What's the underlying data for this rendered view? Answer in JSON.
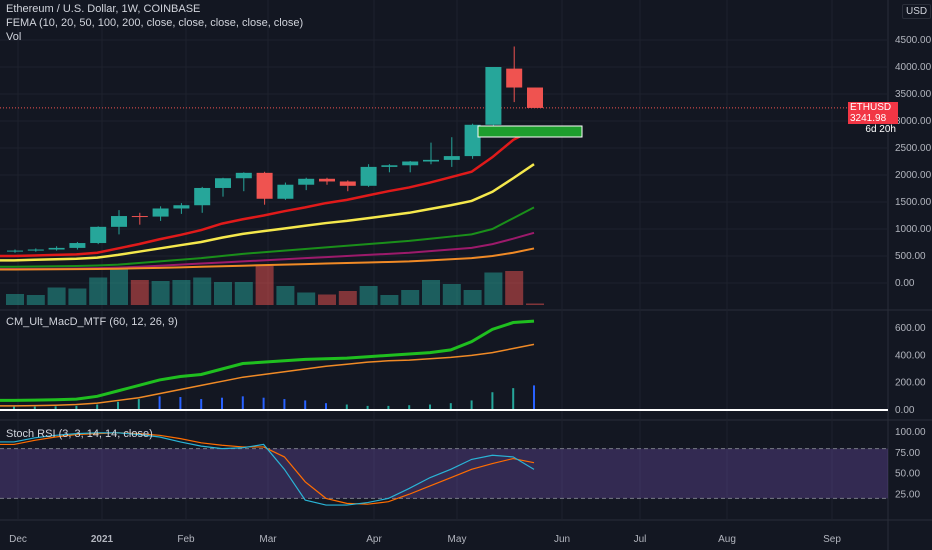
{
  "header": {
    "title": "Ethereum / U.S. Dollar, 1W, COINBASE",
    "fema": "FEMA (10, 20, 50, 100, 200, close, close, close, close, close)",
    "vol": "Vol"
  },
  "currency": "USD",
  "price_tag": {
    "symbol": "ETHUSD",
    "price": "3241.98",
    "countdown": "6d 20h"
  },
  "macd_label": "CM_Ult_MacD_MTF (60, 12, 26, 9)",
  "stoch_label": "Stoch RSI (3, 3, 14, 14, close)",
  "colors": {
    "up": "#26a69a",
    "down": "#ef5350",
    "bg": "#131722"
  },
  "chart_data": [
    {
      "type": "candlestick",
      "y_ticks": [
        "4500.00",
        "4000.00",
        "3500.00",
        "3000.00",
        "2500.00",
        "2000.00",
        "1500.00",
        "1000.00",
        "500.00",
        "0.00"
      ],
      "x_ticks": [
        "Dec",
        "2021",
        "Feb",
        "Mar",
        "Apr",
        "May",
        "Jun",
        "Jul",
        "Aug",
        "Sep"
      ],
      "candles": [
        {
          "o": 590,
          "h": 620,
          "l": 560,
          "c": 600
        },
        {
          "o": 600,
          "h": 640,
          "l": 580,
          "c": 620
        },
        {
          "o": 620,
          "h": 680,
          "l": 600,
          "c": 650
        },
        {
          "o": 650,
          "h": 760,
          "l": 620,
          "c": 740
        },
        {
          "o": 740,
          "h": 1050,
          "l": 720,
          "c": 1040
        },
        {
          "o": 1040,
          "h": 1350,
          "l": 900,
          "c": 1240
        },
        {
          "o": 1240,
          "h": 1300,
          "l": 1080,
          "c": 1230
        },
        {
          "o": 1230,
          "h": 1420,
          "l": 1150,
          "c": 1380
        },
        {
          "o": 1380,
          "h": 1480,
          "l": 1280,
          "c": 1440
        },
        {
          "o": 1440,
          "h": 1780,
          "l": 1300,
          "c": 1760
        },
        {
          "o": 1760,
          "h": 1950,
          "l": 1600,
          "c": 1940
        },
        {
          "o": 1940,
          "h": 2050,
          "l": 1700,
          "c": 2040
        },
        {
          "o": 2040,
          "h": 2060,
          "l": 1450,
          "c": 1560
        },
        {
          "o": 1560,
          "h": 1860,
          "l": 1540,
          "c": 1820
        },
        {
          "o": 1820,
          "h": 1950,
          "l": 1720,
          "c": 1930
        },
        {
          "o": 1930,
          "h": 1950,
          "l": 1820,
          "c": 1880
        },
        {
          "o": 1880,
          "h": 1900,
          "l": 1700,
          "c": 1800
        },
        {
          "o": 1800,
          "h": 2200,
          "l": 1780,
          "c": 2150
        },
        {
          "o": 2150,
          "h": 2200,
          "l": 2050,
          "c": 2180
        },
        {
          "o": 2180,
          "h": 2260,
          "l": 2050,
          "c": 2250
        },
        {
          "o": 2250,
          "h": 2600,
          "l": 2200,
          "c": 2280
        },
        {
          "o": 2280,
          "h": 2700,
          "l": 2150,
          "c": 2350
        },
        {
          "o": 2350,
          "h": 2950,
          "l": 2300,
          "c": 2930
        },
        {
          "o": 2930,
          "h": 4000,
          "l": 2900,
          "c": 4000
        },
        {
          "o": 3970,
          "h": 4380,
          "l": 3350,
          "c": 3620
        },
        {
          "o": 3620,
          "h": 3620,
          "l": 3240,
          "c": 3242
        }
      ],
      "ema_lines": [
        {
          "name": "EMA10",
          "color": "#e01a1a",
          "values": [
            500,
            510,
            520,
            530,
            560,
            640,
            720,
            810,
            890,
            980,
            1100,
            1180,
            1250,
            1330,
            1400,
            1480,
            1540,
            1620,
            1700,
            1770,
            1860,
            1960,
            2060,
            2330,
            2650,
            2850
          ]
        },
        {
          "name": "EMA20",
          "color": "#f5e84c",
          "values": [
            420,
            430,
            440,
            450,
            470,
            520,
            580,
            640,
            700,
            760,
            840,
            910,
            960,
            1010,
            1060,
            1110,
            1150,
            1200,
            1250,
            1300,
            1370,
            1440,
            1520,
            1690,
            1940,
            2200
          ]
        },
        {
          "name": "EMA50",
          "color": "#1a8f1a",
          "values": [
            300,
            305,
            310,
            315,
            325,
            340,
            370,
            400,
            430,
            460,
            500,
            540,
            570,
            600,
            630,
            660,
            690,
            720,
            750,
            780,
            820,
            860,
            900,
            1000,
            1200,
            1400
          ]
        },
        {
          "name": "EMA100",
          "color": "#9c1a6b",
          "values": [
            260,
            262,
            265,
            268,
            275,
            285,
            300,
            320,
            340,
            360,
            380,
            400,
            420,
            440,
            460,
            480,
            500,
            520,
            540,
            560,
            590,
            620,
            650,
            720,
            820,
            930
          ]
        },
        {
          "name": "EMA200",
          "color": "#f08a26",
          "values": [
            250,
            252,
            254,
            256,
            260,
            265,
            272,
            280,
            290,
            300,
            310,
            320,
            330,
            340,
            350,
            360,
            370,
            380,
            390,
            400,
            420,
            440,
            460,
            500,
            560,
            640
          ]
        }
      ],
      "volumes": [
        0.22,
        0.2,
        0.35,
        0.33,
        0.55,
        0.72,
        0.5,
        0.48,
        0.5,
        0.55,
        0.46,
        0.46,
        0.78,
        0.38,
        0.25,
        0.21,
        0.28,
        0.38,
        0.2,
        0.3,
        0.5,
        0.42,
        0.3,
        0.65,
        0.68,
        0.03
      ]
    },
    {
      "type": "line",
      "y_ticks": [
        "600.00",
        "400.00",
        "200.00",
        "0.00"
      ],
      "macd": [
        70,
        72,
        75,
        80,
        100,
        140,
        180,
        220,
        245,
        260,
        300,
        340,
        350,
        360,
        370,
        375,
        380,
        390,
        400,
        410,
        420,
        440,
        500,
        590,
        640,
        650
      ],
      "signal": [
        30,
        32,
        35,
        40,
        50,
        70,
        90,
        120,
        150,
        180,
        210,
        240,
        260,
        280,
        300,
        320,
        335,
        350,
        360,
        365,
        375,
        385,
        400,
        420,
        450,
        480
      ],
      "hist": [
        25,
        25,
        27,
        30,
        40,
        60,
        80,
        100,
        95,
        80,
        90,
        100,
        90,
        80,
        70,
        50,
        40,
        30,
        30,
        35,
        40,
        50,
        70,
        130,
        160,
        180
      ]
    },
    {
      "type": "line",
      "y_ticks": [
        "100.00",
        "75.00",
        "50.00",
        "25.00"
      ],
      "k": [
        88,
        93,
        96,
        98,
        99,
        99,
        97,
        94,
        88,
        83,
        80,
        81,
        85,
        55,
        18,
        12,
        12,
        15,
        20,
        32,
        45,
        55,
        67,
        72,
        70,
        55
      ],
      "d": [
        85,
        90,
        94,
        97,
        98,
        99,
        98,
        96,
        92,
        87,
        84,
        82,
        82,
        70,
        40,
        20,
        14,
        13,
        16,
        25,
        35,
        45,
        55,
        62,
        68,
        63
      ],
      "band": [
        20,
        80
      ]
    }
  ]
}
